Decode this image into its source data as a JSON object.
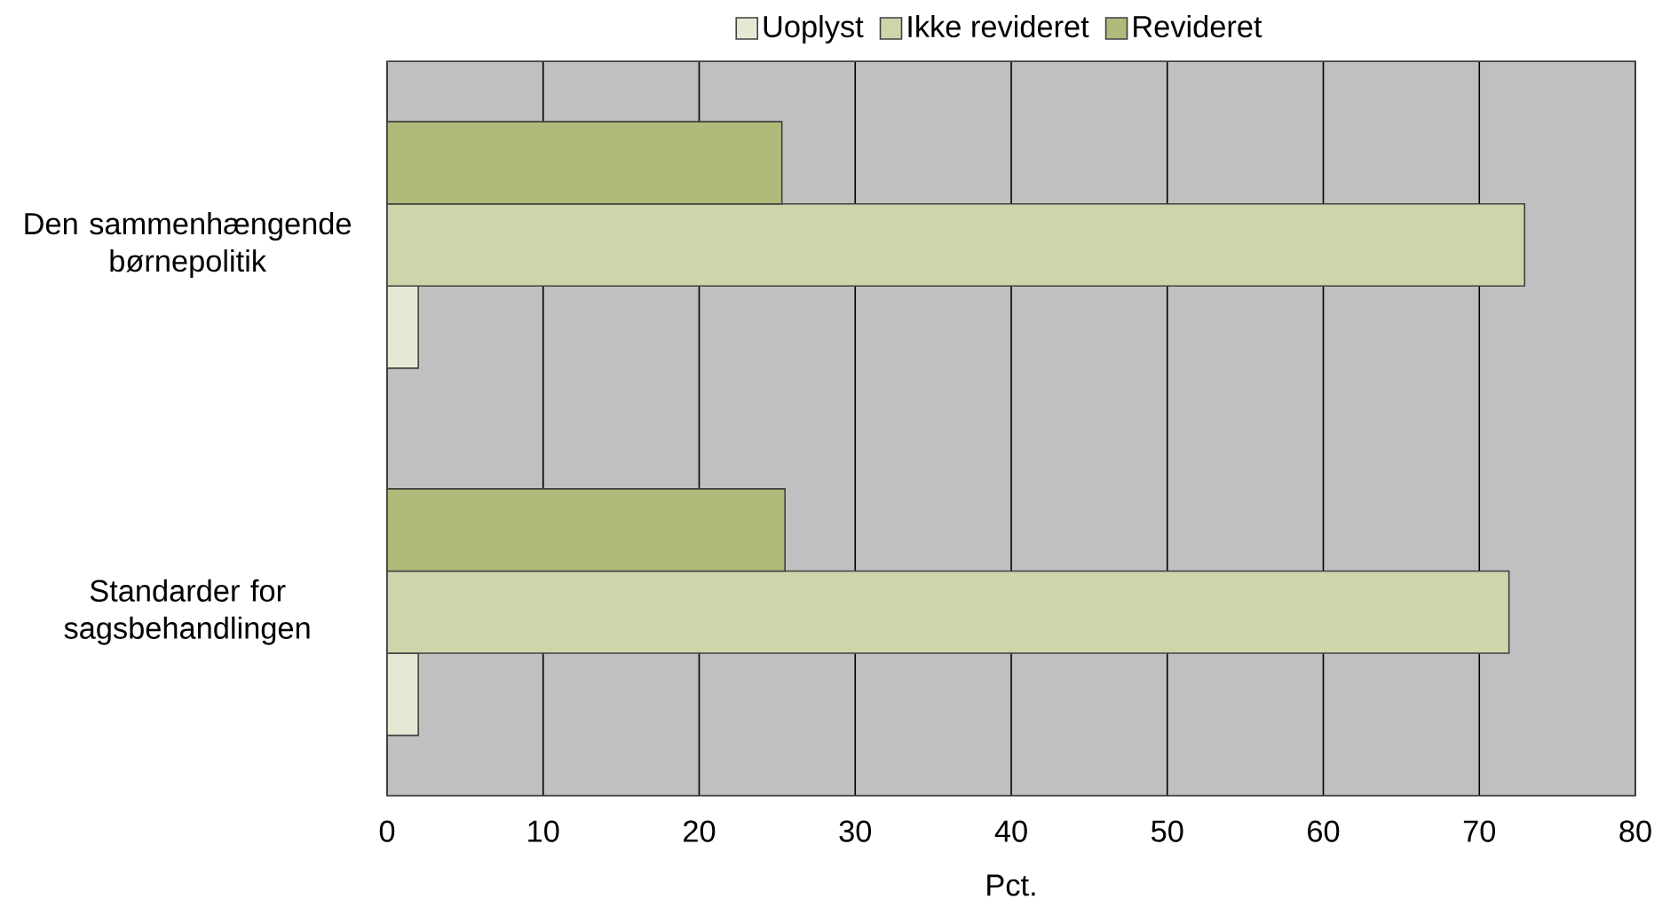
{
  "chart_data": {
    "type": "bar",
    "orientation": "horizontal",
    "categories": [
      "Den sammenhængende børnepolitik",
      "Standarder for sagsbehandlingen"
    ],
    "series": [
      {
        "name": "Uoplyst",
        "color": "#e3e9d3",
        "values": [
          2.0,
          2.0
        ]
      },
      {
        "name": "Ikke revideret",
        "color": "#cdd6ab",
        "values": [
          72.9,
          71.9
        ]
      },
      {
        "name": "Revideret",
        "color": "#afbb7a",
        "values": [
          25.3,
          25.5
        ]
      }
    ],
    "xlabel": "Pct.",
    "xlim": [
      0,
      80
    ],
    "xticks": [
      0,
      10,
      20,
      30,
      40,
      50,
      60,
      70,
      80
    ],
    "grid": "x",
    "legend": "top"
  }
}
